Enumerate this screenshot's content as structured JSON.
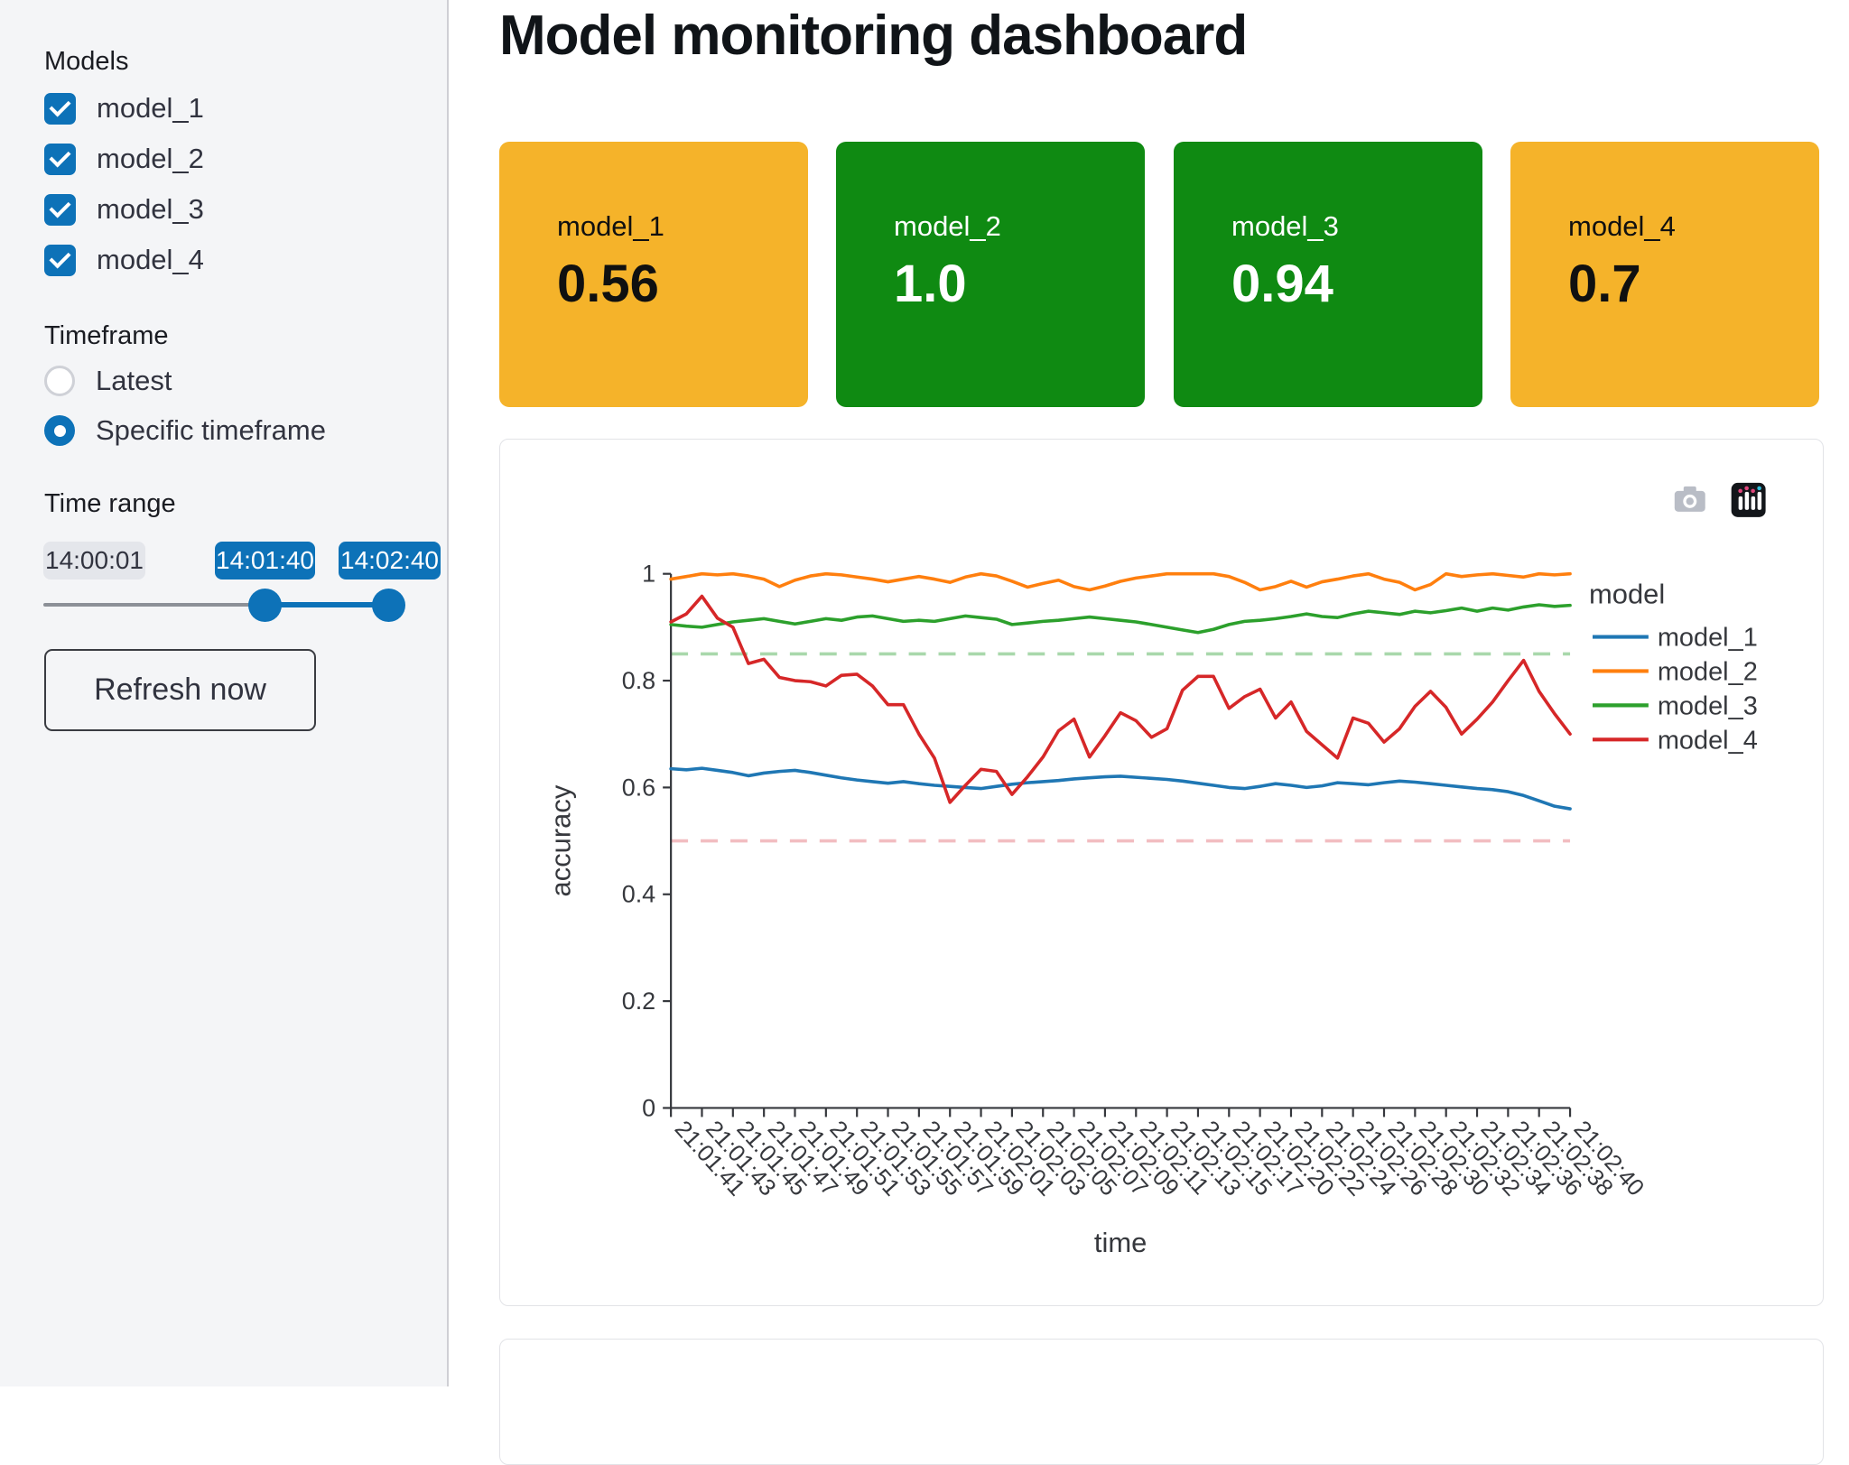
{
  "header": {
    "title": "Model monitoring dashboard"
  },
  "sidebar": {
    "models_label": "Models",
    "models": [
      {
        "label": "model_1",
        "checked": true
      },
      {
        "label": "model_2",
        "checked": true
      },
      {
        "label": "model_3",
        "checked": true
      },
      {
        "label": "model_4",
        "checked": true
      }
    ],
    "timeframe_label": "Timeframe",
    "timeframe_options": [
      {
        "label": "Latest",
        "selected": false
      },
      {
        "label": "Specific timeframe",
        "selected": true
      }
    ],
    "time_range_label": "Time range",
    "slider": {
      "min_label": "14:00:01",
      "start_label": "14:01:40",
      "end_label": "14:02:40"
    },
    "refresh_button_label": "Refresh now",
    "collapse_glyph": "‹"
  },
  "metric_cards": [
    {
      "label": "model_1",
      "value": "0.56",
      "status": "warning"
    },
    {
      "label": "model_2",
      "value": "1.0",
      "status": "ok"
    },
    {
      "label": "model_3",
      "value": "0.94",
      "status": "ok"
    },
    {
      "label": "model_4",
      "value": "0.7",
      "status": "warning"
    }
  ],
  "colors": {
    "primary": "#0d72b8",
    "card_warning": "#f5b32a",
    "card_ok": "#0f8a12",
    "axis_text": "#36383d"
  },
  "chart_data": {
    "type": "line",
    "xlabel": "time",
    "ylabel": "accuracy",
    "legend_title": "model",
    "legend_position": "right",
    "grid": false,
    "ylim": [
      0,
      1
    ],
    "y_ticks": [
      0,
      0.2,
      0.4,
      0.6,
      0.8,
      1
    ],
    "x_tick_every": 2,
    "x_tick_labels": [
      "21:01:41",
      "21:01:43",
      "21:01:45",
      "21:01:47",
      "21:01:49",
      "21:01:51",
      "21:01:53",
      "21:01:55",
      "21:01:57",
      "21:01:59",
      "21:02:01",
      "21:02:03",
      "21:02:05",
      "21:02:07",
      "21:02:09",
      "21:02:11",
      "21:02:13",
      "21:02:15",
      "21:02:17",
      "21:02:20",
      "21:02:22",
      "21:02:24",
      "21:02:26",
      "21:02:28",
      "21:02:30",
      "21:02:32",
      "21:02:34",
      "21:02:36",
      "21:02:38",
      "21:02:40"
    ],
    "reference_lines": [
      {
        "value": 0.85,
        "color": "#a9d8ab",
        "style": "dashed"
      },
      {
        "value": 0.5,
        "color": "#f2bdc1",
        "style": "dashed"
      }
    ],
    "series": [
      {
        "name": "model_1",
        "color": "#1f77b4",
        "values": [
          0.635,
          0.633,
          0.636,
          0.632,
          0.628,
          0.622,
          0.627,
          0.63,
          0.632,
          0.628,
          0.623,
          0.618,
          0.614,
          0.611,
          0.608,
          0.611,
          0.607,
          0.604,
          0.602,
          0.6,
          0.598,
          0.602,
          0.606,
          0.609,
          0.611,
          0.613,
          0.616,
          0.618,
          0.62,
          0.621,
          0.619,
          0.617,
          0.615,
          0.612,
          0.608,
          0.604,
          0.6,
          0.598,
          0.602,
          0.607,
          0.604,
          0.6,
          0.603,
          0.609,
          0.607,
          0.605,
          0.609,
          0.612,
          0.61,
          0.607,
          0.604,
          0.601,
          0.598,
          0.596,
          0.592,
          0.585,
          0.575,
          0.565,
          0.56
        ]
      },
      {
        "name": "model_2",
        "color": "#ff7f0e",
        "values": [
          0.99,
          0.995,
          1.0,
          0.998,
          1.0,
          0.996,
          0.99,
          0.976,
          0.988,
          0.996,
          1.0,
          0.998,
          0.994,
          0.99,
          0.985,
          0.99,
          0.995,
          0.99,
          0.984,
          0.994,
          1.0,
          0.996,
          0.986,
          0.975,
          0.982,
          0.988,
          0.976,
          0.97,
          0.977,
          0.986,
          0.992,
          0.996,
          1.0,
          1.0,
          1.0,
          1.0,
          0.995,
          0.984,
          0.97,
          0.976,
          0.986,
          0.975,
          0.985,
          0.99,
          0.996,
          1.0,
          0.99,
          0.984,
          0.97,
          0.98,
          1.0,
          0.995,
          0.998,
          1.0,
          0.997,
          0.994,
          1.0,
          0.998,
          1.0
        ]
      },
      {
        "name": "model_3",
        "color": "#2ca02c",
        "values": [
          0.905,
          0.902,
          0.9,
          0.905,
          0.91,
          0.913,
          0.916,
          0.911,
          0.906,
          0.911,
          0.916,
          0.913,
          0.919,
          0.921,
          0.916,
          0.911,
          0.913,
          0.911,
          0.916,
          0.921,
          0.918,
          0.915,
          0.905,
          0.908,
          0.911,
          0.913,
          0.916,
          0.919,
          0.916,
          0.913,
          0.91,
          0.905,
          0.9,
          0.895,
          0.89,
          0.896,
          0.905,
          0.911,
          0.913,
          0.916,
          0.92,
          0.925,
          0.92,
          0.918,
          0.925,
          0.93,
          0.927,
          0.924,
          0.93,
          0.927,
          0.931,
          0.936,
          0.93,
          0.936,
          0.932,
          0.938,
          0.942,
          0.939,
          0.941
        ]
      },
      {
        "name": "model_4",
        "color": "#d62728",
        "values": [
          0.91,
          0.925,
          0.958,
          0.917,
          0.9,
          0.832,
          0.84,
          0.806,
          0.8,
          0.798,
          0.79,
          0.81,
          0.812,
          0.79,
          0.755,
          0.755,
          0.7,
          0.655,
          0.572,
          0.604,
          0.634,
          0.63,
          0.587,
          0.62,
          0.657,
          0.706,
          0.728,
          0.657,
          0.697,
          0.74,
          0.725,
          0.694,
          0.71,
          0.782,
          0.808,
          0.808,
          0.748,
          0.77,
          0.784,
          0.73,
          0.76,
          0.705,
          0.68,
          0.655,
          0.73,
          0.72,
          0.685,
          0.71,
          0.752,
          0.78,
          0.75,
          0.7,
          0.728,
          0.76,
          0.8,
          0.838,
          0.78,
          0.738,
          0.7
        ]
      }
    ],
    "toolbar_icons": [
      "camera-icon",
      "plotly-logo-icon"
    ]
  }
}
